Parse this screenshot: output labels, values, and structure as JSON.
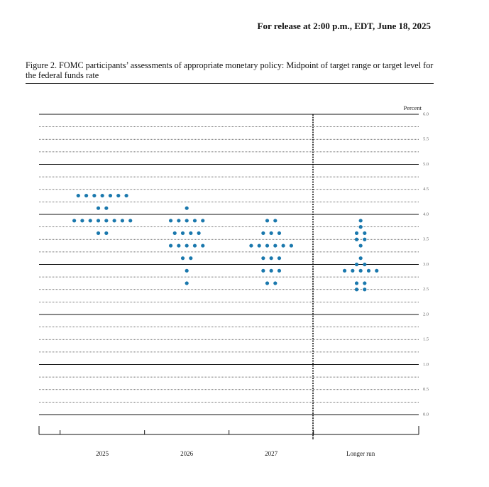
{
  "chart_data": {
    "type": "dot",
    "header": "For release at 2:00 p.m., EDT, June 18, 2025",
    "title": "Figure 2. FOMC participants’ assessments of appropriate monetary policy: Midpoint of target range or target level for the federal funds rate",
    "y_label": "Percent",
    "categories": [
      "2025",
      "2026",
      "2027",
      "Longer run"
    ],
    "dots": [
      [
        {
          "value": 4.375,
          "count": 7
        },
        {
          "value": 4.125,
          "count": 2
        },
        {
          "value": 3.875,
          "count": 8
        },
        {
          "value": 3.625,
          "count": 2
        }
      ],
      [
        {
          "value": 4.125,
          "count": 1
        },
        {
          "value": 3.875,
          "count": 5
        },
        {
          "value": 3.625,
          "count": 4
        },
        {
          "value": 3.375,
          "count": 5
        },
        {
          "value": 3.125,
          "count": 2
        },
        {
          "value": 2.875,
          "count": 1
        },
        {
          "value": 2.625,
          "count": 1
        }
      ],
      [
        {
          "value": 3.875,
          "count": 2
        },
        {
          "value": 3.625,
          "count": 3
        },
        {
          "value": 3.375,
          "count": 6
        },
        {
          "value": 3.125,
          "count": 3
        },
        {
          "value": 2.875,
          "count": 3
        },
        {
          "value": 2.625,
          "count": 2
        }
      ],
      [
        {
          "value": 3.875,
          "count": 1
        },
        {
          "value": 3.75,
          "count": 1
        },
        {
          "value": 3.625,
          "count": 2
        },
        {
          "value": 3.5,
          "count": 2
        },
        {
          "value": 3.375,
          "count": 1
        },
        {
          "value": 3.125,
          "count": 1
        },
        {
          "value": 3.0,
          "count": 2
        },
        {
          "value": 2.875,
          "count": 5
        },
        {
          "value": 2.625,
          "count": 2
        },
        {
          "value": 2.5,
          "count": 2
        }
      ]
    ],
    "color": "#1a78ad",
    "ylim": [
      0,
      6
    ],
    "yticks": [
      {
        "value": 0,
        "label": "0.0"
      },
      0.5,
      {
        "value": 1,
        "label": "1.0"
      },
      1.5,
      {
        "value": 2,
        "label": "2.0"
      },
      2.5,
      {
        "value": 3,
        "label": "3.0"
      },
      3.5,
      {
        "value": 4,
        "label": "4.0"
      },
      4.5,
      {
        "value": 5,
        "label": "5.0"
      },
      5.5,
      {
        "value": 6,
        "label": "6.0"
      }
    ],
    "grid": true
  }
}
